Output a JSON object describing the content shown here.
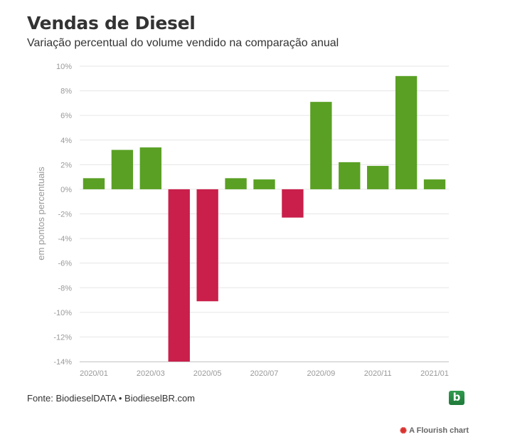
{
  "header": {
    "title": "Vendas de Diesel",
    "subtitle": "Variação percentual do volume vendido na comparação anual"
  },
  "footer": {
    "source": "Fonte: BiodieselDATA • BiodieselBR.com",
    "logo_letter": "b",
    "credit": "A Flourish chart",
    "credit_icon": "flourish-icon"
  },
  "colors": {
    "positive": "#5aa024",
    "negative": "#c91f4a",
    "grid": "#e6e6e6",
    "tick_text": "#999999"
  },
  "chart_data": {
    "type": "bar",
    "categories": [
      "2020/01",
      "2020/02",
      "2020/03",
      "2020/04",
      "2020/05",
      "2020/06",
      "2020/07",
      "2020/08",
      "2020/09",
      "2020/10",
      "2020/11",
      "2020/12",
      "2021/01"
    ],
    "values": [
      0.9,
      3.2,
      3.4,
      -14.0,
      -9.1,
      0.9,
      0.8,
      -2.3,
      7.1,
      2.2,
      1.9,
      9.2,
      0.8
    ],
    "x_tick_labels": [
      "2020/01",
      "2020/03",
      "2020/05",
      "2020/07",
      "2020/09",
      "2020/11",
      "2021/01"
    ],
    "y_tick_labels": [
      "10%",
      "8%",
      "6%",
      "4%",
      "2%",
      "0%",
      "-2%",
      "-4%",
      "-6%",
      "-8%",
      "-10%",
      "-12%",
      "-14%"
    ],
    "y_ticks": [
      10,
      8,
      6,
      4,
      2,
      0,
      -2,
      -4,
      -6,
      -8,
      -10,
      -12,
      -14
    ],
    "ylabel": "em pontos percentuais",
    "xlabel": "",
    "ylim": [
      -14,
      10
    ],
    "grid": true
  }
}
